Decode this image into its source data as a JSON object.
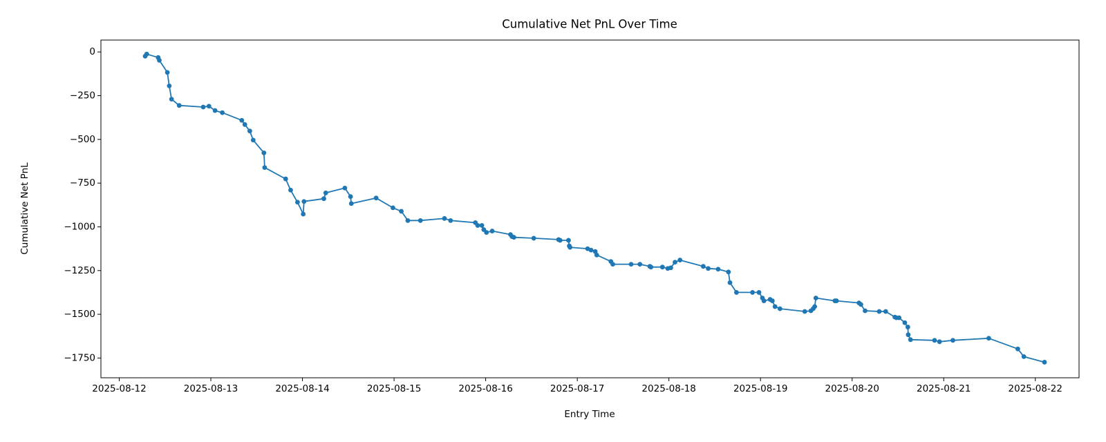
{
  "chart_data": {
    "type": "line",
    "title": "Cumulative Net PnL Over Time",
    "x_label": "Entry Time",
    "y_label": "Cumulative Net PnL",
    "series": [
      {
        "name": "Cumulative Net PnL",
        "color": "#1f77b4",
        "x": [
          "2025-08-12T06:48",
          "2025-08-12T07:12",
          "2025-08-12T10:12",
          "2025-08-12T10:30",
          "2025-08-12T12:36",
          "2025-08-12T13:06",
          "2025-08-12T13:42",
          "2025-08-12T15:42",
          "2025-08-12T22:00",
          "2025-08-12T23:30",
          "2025-08-13T01:06",
          "2025-08-13T03:00",
          "2025-08-13T08:06",
          "2025-08-13T08:54",
          "2025-08-13T10:12",
          "2025-08-13T11:06",
          "2025-08-13T13:54",
          "2025-08-13T14:06",
          "2025-08-13T19:36",
          "2025-08-13T20:54",
          "2025-08-13T22:42",
          "2025-08-14T00:12",
          "2025-08-14T00:24",
          "2025-08-14T05:36",
          "2025-08-14T06:06",
          "2025-08-14T11:06",
          "2025-08-14T12:36",
          "2025-08-14T12:48",
          "2025-08-14T19:18",
          "2025-08-14T23:42",
          "2025-08-15T01:54",
          "2025-08-15T03:36",
          "2025-08-15T06:54",
          "2025-08-15T13:12",
          "2025-08-15T14:48",
          "2025-08-15T21:18",
          "2025-08-15T21:54",
          "2025-08-15T23:00",
          "2025-08-15T23:30",
          "2025-08-16T00:12",
          "2025-08-16T01:42",
          "2025-08-16T06:30",
          "2025-08-16T06:54",
          "2025-08-16T07:24",
          "2025-08-16T12:36",
          "2025-08-16T19:06",
          "2025-08-16T19:30",
          "2025-08-16T21:42",
          "2025-08-16T21:54",
          "2025-08-16T22:06",
          "2025-08-17T02:42",
          "2025-08-17T03:36",
          "2025-08-17T04:42",
          "2025-08-17T05:06",
          "2025-08-17T08:48",
          "2025-08-17T09:18",
          "2025-08-17T14:06",
          "2025-08-17T16:24",
          "2025-08-17T19:00",
          "2025-08-17T19:18",
          "2025-08-17T22:18",
          "2025-08-17T23:42",
          "2025-08-18T00:30",
          "2025-08-18T01:36",
          "2025-08-18T02:54",
          "2025-08-18T09:00",
          "2025-08-18T10:18",
          "2025-08-18T12:54",
          "2025-08-18T15:36",
          "2025-08-18T16:00",
          "2025-08-18T17:42",
          "2025-08-18T21:54",
          "2025-08-18T23:36",
          "2025-08-19T00:30",
          "2025-08-19T00:54",
          "2025-08-19T02:30",
          "2025-08-19T03:06",
          "2025-08-19T03:48",
          "2025-08-19T05:06",
          "2025-08-19T11:36",
          "2025-08-19T13:12",
          "2025-08-19T13:48",
          "2025-08-19T14:12",
          "2025-08-19T14:30",
          "2025-08-19T19:30",
          "2025-08-19T19:54",
          "2025-08-20T01:48",
          "2025-08-20T02:18",
          "2025-08-20T03:24",
          "2025-08-20T07:06",
          "2025-08-20T08:48",
          "2025-08-20T11:12",
          "2025-08-20T11:36",
          "2025-08-20T12:18",
          "2025-08-20T13:48",
          "2025-08-20T14:36",
          "2025-08-20T14:42",
          "2025-08-20T15:18",
          "2025-08-20T21:36",
          "2025-08-20T22:54",
          "2025-08-21T02:24",
          "2025-08-21T11:48",
          "2025-08-21T19:24",
          "2025-08-21T21:00",
          "2025-08-22T02:24"
        ],
        "values": [
          -24,
          -12,
          -32,
          -48,
          -117,
          -194,
          -270,
          -306,
          -315,
          -310,
          -335,
          -347,
          -391,
          -415,
          -452,
          -504,
          -577,
          -661,
          -726,
          -790,
          -859,
          -927,
          -855,
          -839,
          -806,
          -778,
          -827,
          -867,
          -835,
          -891,
          -911,
          -964,
          -964,
          -952,
          -964,
          -976,
          -992,
          -992,
          -1016,
          -1032,
          -1024,
          -1044,
          -1056,
          -1060,
          -1065,
          -1073,
          -1077,
          -1077,
          -1109,
          -1117,
          -1125,
          -1133,
          -1141,
          -1161,
          -1198,
          -1214,
          -1214,
          -1214,
          -1226,
          -1230,
          -1230,
          -1238,
          -1234,
          -1202,
          -1190,
          -1226,
          -1238,
          -1242,
          -1258,
          -1319,
          -1375,
          -1375,
          -1375,
          -1407,
          -1423,
          -1415,
          -1423,
          -1456,
          -1468,
          -1484,
          -1480,
          -1468,
          -1456,
          -1407,
          -1423,
          -1423,
          -1435,
          -1444,
          -1480,
          -1484,
          -1484,
          -1516,
          -1520,
          -1520,
          -1548,
          -1573,
          -1617,
          -1645,
          -1649,
          -1657,
          -1649,
          -1637,
          -1698,
          -1742,
          -1774
        ]
      }
    ],
    "xlim": [
      "2025-08-11T19:12",
      "2025-08-22T11:27"
    ],
    "xticks": [
      "2025-08-12",
      "2025-08-13",
      "2025-08-14",
      "2025-08-15",
      "2025-08-16",
      "2025-08-17",
      "2025-08-18",
      "2025-08-19",
      "2025-08-20",
      "2025-08-21",
      "2025-08-22"
    ],
    "ylim": [
      -1863,
      68
    ],
    "yticks": [
      {
        "value": 0,
        "label": "0"
      },
      {
        "value": -250,
        "label": "−250"
      },
      {
        "value": -500,
        "label": "−500"
      },
      {
        "value": -750,
        "label": "−750"
      },
      {
        "value": -1000,
        "label": "−1000"
      },
      {
        "value": -1250,
        "label": "−1250"
      },
      {
        "value": -1500,
        "label": "−1500"
      },
      {
        "value": -1750,
        "label": "−1750"
      }
    ],
    "grid": false
  }
}
